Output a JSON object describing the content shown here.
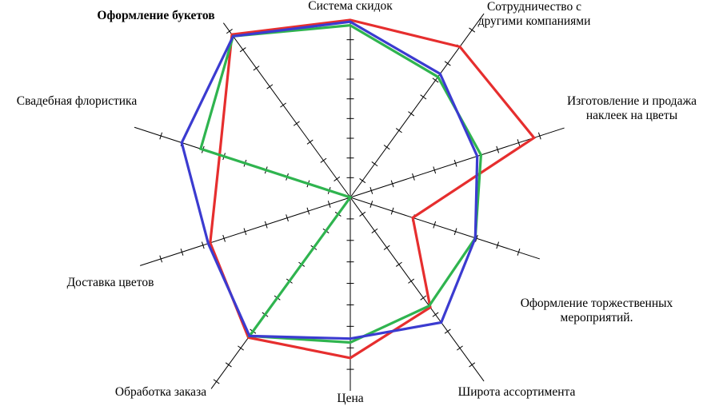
{
  "figure": {
    "kind": "radar-chart-figure",
    "background": "#ffffff",
    "title": "",
    "legend": "none"
  },
  "chart_data": {
    "type": "radar",
    "title": "",
    "axis_range": [
      0,
      10
    ],
    "grid_rings": "none",
    "axis_tick_marks": true,
    "legend_position": "none",
    "categories": [
      "Система скидок",
      "Сотрудничество с\nдругими компаниями",
      "Изготовление и продажа\nнаклеек на цветы",
      "Оформление торжественных\nмероприятий.",
      "Широта ассортимента",
      "Цена",
      "Обработка заказа",
      "Доставка цветов",
      "Свадебная флористика",
      "Оформление букетов"
    ],
    "emphasized_category": "Оформление букетов",
    "series": [
      {
        "name": "red",
        "color": "#e62e2e",
        "values": [
          10.0,
          10.0,
          9.7,
          3.3,
          7.3,
          8.3,
          9.3,
          7.4,
          6.9,
          9.8
        ]
      },
      {
        "name": "green",
        "color": "#2fb44f",
        "values": [
          9.7,
          8.0,
          6.9,
          6.6,
          7.2,
          7.5,
          9.2,
          0.0,
          7.9,
          9.7
        ]
      },
      {
        "name": "blue",
        "color": "#3b3bd0",
        "values": [
          9.9,
          8.2,
          6.7,
          6.6,
          8.3,
          7.3,
          9.2,
          7.5,
          8.9,
          9.7
        ]
      }
    ]
  }
}
